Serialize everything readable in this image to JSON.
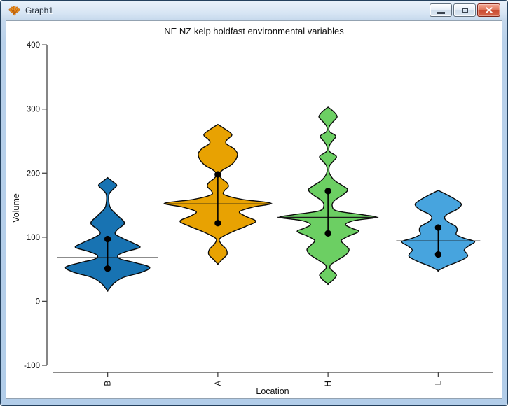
{
  "window": {
    "title": "Graph1",
    "app_icon": "scallop-shell-icon",
    "controls": [
      "minimize",
      "maximize",
      "close"
    ]
  },
  "chart_data": {
    "type": "violin",
    "title": "NE NZ kelp holdfast environmental variables",
    "xlabel": "Location",
    "ylabel": "Volume",
    "ylim": [
      -100,
      400
    ],
    "yticks": [
      400,
      300,
      200,
      100,
      0,
      -100
    ],
    "categories": [
      "B",
      "A",
      "H",
      "L"
    ],
    "grid": false,
    "x_tick_label_rotation": -90,
    "groups": [
      {
        "label": "B",
        "fill_color": "#1873B2",
        "outline_color": "#000000",
        "summary": {
          "median": 68,
          "upper_dot": 97,
          "lower_dot": 51
        },
        "median_line_halfwidth": 72,
        "density_profile": [
          [
            193,
            0
          ],
          [
            187,
            7
          ],
          [
            181,
            13
          ],
          [
            174,
            7
          ],
          [
            167,
            2
          ],
          [
            153,
            2
          ],
          [
            144,
            5
          ],
          [
            133,
            15
          ],
          [
            122,
            24
          ],
          [
            112,
            14
          ],
          [
            105,
            11
          ],
          [
            98,
            22
          ],
          [
            90,
            38
          ],
          [
            84,
            46
          ],
          [
            78,
            28
          ],
          [
            72,
            15
          ],
          [
            66,
            18
          ],
          [
            60,
            40
          ],
          [
            53,
            60
          ],
          [
            45,
            48
          ],
          [
            37,
            22
          ],
          [
            28,
            9
          ],
          [
            19,
            2
          ],
          [
            16,
            0
          ]
        ]
      },
      {
        "label": "A",
        "fill_color": "#E8A202",
        "outline_color": "#000000",
        "summary": {
          "median": 152,
          "upper_dot": 198,
          "lower_dot": 122
        },
        "median_line_halfwidth": 78,
        "density_profile": [
          [
            276,
            0
          ],
          [
            269,
            10
          ],
          [
            260,
            20
          ],
          [
            252,
            13
          ],
          [
            246,
            12
          ],
          [
            238,
            23
          ],
          [
            230,
            28
          ],
          [
            220,
            25
          ],
          [
            212,
            18
          ],
          [
            205,
            7
          ],
          [
            199,
            2
          ],
          [
            192,
            5
          ],
          [
            185,
            13
          ],
          [
            179,
            15
          ],
          [
            172,
            9
          ],
          [
            166,
            10
          ],
          [
            159,
            35
          ],
          [
            153,
            76
          ],
          [
            147,
            50
          ],
          [
            140,
            31
          ],
          [
            133,
            39
          ],
          [
            125,
            54
          ],
          [
            117,
            40
          ],
          [
            109,
            22
          ],
          [
            101,
            7
          ],
          [
            96,
            2
          ],
          [
            89,
            5
          ],
          [
            81,
            12
          ],
          [
            73,
            13
          ],
          [
            66,
            7
          ],
          [
            58,
            0
          ]
        ]
      },
      {
        "label": "H",
        "fill_color": "#6CCF63",
        "outline_color": "#000000",
        "summary": {
          "median": 131,
          "upper_dot": 172,
          "lower_dot": 106
        },
        "median_line_halfwidth": 72,
        "density_profile": [
          [
            303,
            0
          ],
          [
            296,
            8
          ],
          [
            288,
            13
          ],
          [
            280,
            7
          ],
          [
            273,
            2
          ],
          [
            265,
            2
          ],
          [
            258,
            11
          ],
          [
            251,
            7
          ],
          [
            243,
            2
          ],
          [
            234,
            2
          ],
          [
            226,
            12
          ],
          [
            218,
            7
          ],
          [
            211,
            2
          ],
          [
            200,
            2
          ],
          [
            189,
            9
          ],
          [
            181,
            20
          ],
          [
            174,
            28
          ],
          [
            166,
            21
          ],
          [
            157,
            9
          ],
          [
            149,
            6
          ],
          [
            141,
            13
          ],
          [
            135,
            50
          ],
          [
            131,
            69
          ],
          [
            126,
            38
          ],
          [
            120,
            25
          ],
          [
            114,
            34
          ],
          [
            109,
            44
          ],
          [
            102,
            30
          ],
          [
            95,
            19
          ],
          [
            88,
            24
          ],
          [
            81,
            30
          ],
          [
            73,
            26
          ],
          [
            65,
            15
          ],
          [
            57,
            4
          ],
          [
            51,
            3
          ],
          [
            45,
            9
          ],
          [
            40,
            12
          ],
          [
            33,
            7
          ],
          [
            27,
            0
          ]
        ]
      },
      {
        "label": "L",
        "fill_color": "#47A4DE",
        "outline_color": "#000000",
        "summary": {
          "median": 94,
          "upper_dot": 115,
          "lower_dot": 73
        },
        "median_line_halfwidth": 60,
        "density_profile": [
          [
            173,
            0
          ],
          [
            166,
            13
          ],
          [
            158,
            26
          ],
          [
            151,
            33
          ],
          [
            143,
            26
          ],
          [
            136,
            13
          ],
          [
            130,
            9
          ],
          [
            124,
            14
          ],
          [
            117,
            25
          ],
          [
            111,
            27
          ],
          [
            104,
            26
          ],
          [
            98,
            38
          ],
          [
            93,
            52
          ],
          [
            86,
            43
          ],
          [
            80,
            37
          ],
          [
            74,
            41
          ],
          [
            69,
            41
          ],
          [
            62,
            29
          ],
          [
            55,
            13
          ],
          [
            48,
            0
          ]
        ]
      }
    ]
  }
}
